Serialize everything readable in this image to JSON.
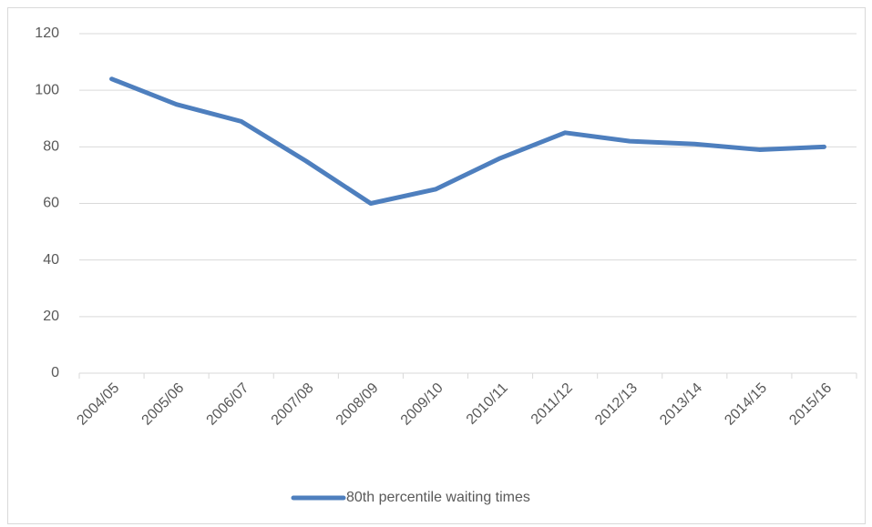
{
  "chart_data": {
    "type": "line",
    "categories": [
      "2004/05",
      "2005/06",
      "2006/07",
      "2007/08",
      "2008/09",
      "2009/10",
      "2010/11",
      "2011/12",
      "2012/13",
      "2013/14",
      "2014/15",
      "2015/16"
    ],
    "series": [
      {
        "name": "80th percentile waiting times",
        "color": "#4e7fbe",
        "values": [
          104,
          95,
          89,
          75,
          60,
          65,
          76,
          85,
          82,
          81,
          79,
          80
        ]
      }
    ],
    "ylim": [
      0,
      120
    ],
    "yticks": [
      0,
      20,
      40,
      60,
      80,
      100,
      120
    ],
    "grid": true,
    "legend": "bottom"
  }
}
